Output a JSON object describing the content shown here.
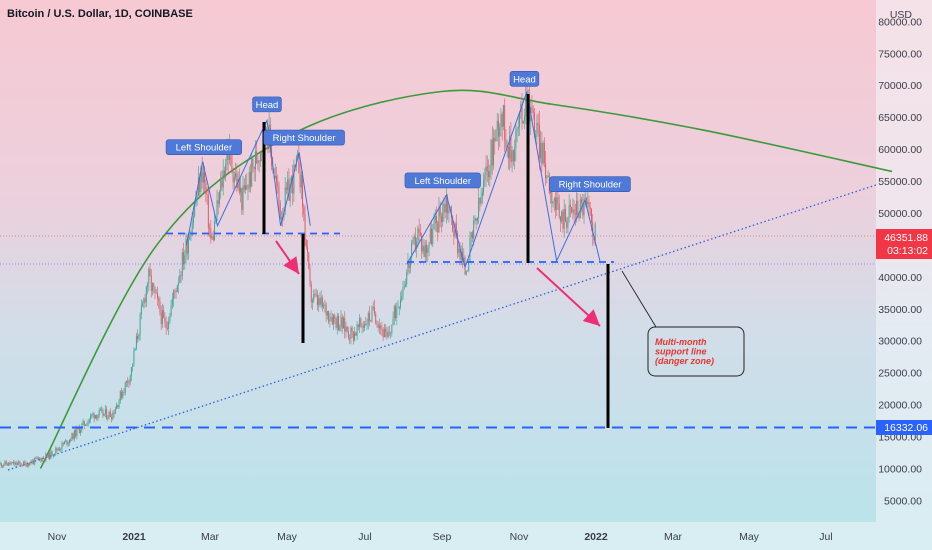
{
  "header": {
    "title": "Bitcoin / U.S. Dollar, 1D, COINBASE"
  },
  "chart_data": {
    "type": "line",
    "currency": "USD",
    "y_ticks": [
      5000,
      10000,
      15000,
      20000,
      25000,
      30000,
      35000,
      40000,
      45000,
      50000,
      55000,
      60000,
      65000,
      70000,
      75000,
      80000
    ],
    "ylim": [
      0,
      85000
    ],
    "x_ticks": [
      "Nov",
      "2021",
      "Mar",
      "May",
      "Jul",
      "Sep",
      "Nov",
      "2022",
      "Mar",
      "May",
      "Jul"
    ],
    "x_ticks_bold": [
      "2021",
      "2022"
    ],
    "price_label": {
      "price": "46351.88",
      "countdown": "03:13:02",
      "color": "#f23645"
    },
    "support_label": {
      "price": "16332.06",
      "color": "#2962ff"
    },
    "series": [
      {
        "values": [
          [
            "2020-10-01",
            10700
          ],
          [
            "2020-10-20",
            12000
          ],
          [
            "2020-11-05",
            14500
          ],
          [
            "2020-11-25",
            18500
          ],
          [
            "2020-12-10",
            18500
          ],
          [
            "2020-12-25",
            25000
          ],
          [
            "2021-01-08",
            40000
          ],
          [
            "2021-01-22",
            32000
          ],
          [
            "2021-02-08",
            45000
          ],
          [
            "2021-02-21",
            57000
          ],
          [
            "2021-02-28",
            45000
          ],
          [
            "2021-03-13",
            60000
          ],
          [
            "2021-03-25",
            52000
          ],
          [
            "2021-04-14",
            63500
          ],
          [
            "2021-04-25",
            50000
          ],
          [
            "2021-05-10",
            58000
          ],
          [
            "2021-05-19",
            37000
          ],
          [
            "2021-06-22",
            31000
          ],
          [
            "2021-07-10",
            34500
          ],
          [
            "2021-07-20",
            30000
          ],
          [
            "2021-08-14",
            47000
          ],
          [
            "2021-08-19",
            44000
          ],
          [
            "2021-09-06",
            52000
          ],
          [
            "2021-09-21",
            41000
          ],
          [
            "2021-10-20",
            66000
          ],
          [
            "2021-10-28",
            59000
          ],
          [
            "2021-11-10",
            68500
          ],
          [
            "2021-11-28",
            55000
          ],
          [
            "2021-12-06",
            49000
          ],
          [
            "2021-12-27",
            51500
          ],
          [
            "2022-01-05",
            46351.88
          ]
        ]
      }
    ],
    "patterns": [
      {
        "points": [
          [
            "2021-02-08",
            45000
          ],
          [
            "2021-02-21",
            58000
          ],
          [
            "2021-03-05",
            48000
          ],
          [
            "2021-04-14",
            64500
          ],
          [
            "2021-04-25",
            48000
          ],
          [
            "2021-05-10",
            59500
          ],
          [
            "2021-05-19",
            48000
          ]
        ]
      },
      {
        "points": [
          [
            "2021-08-05",
            42000
          ],
          [
            "2021-09-06",
            52800
          ],
          [
            "2021-09-21",
            41500
          ],
          [
            "2021-11-10",
            69000
          ],
          [
            "2021-12-04",
            42500
          ],
          [
            "2021-12-27",
            52000
          ],
          [
            "2022-01-08",
            42500
          ]
        ]
      }
    ],
    "annotations": [
      {
        "text": "Left Shoulder",
        "date": "2021-02-22",
        "price": 60300
      },
      {
        "text": "Head",
        "date": "2021-04-14",
        "price": 67000
      },
      {
        "text": "Right Shoulder",
        "date": "2021-05-14",
        "price": 61800
      },
      {
        "text": "Left Shoulder",
        "date": "2021-09-03",
        "price": 55100
      },
      {
        "text": "Head",
        "date": "2021-11-08",
        "price": 71000
      },
      {
        "text": "Right Shoulder",
        "date": "2021-12-31",
        "price": 54500
      }
    ],
    "callout": {
      "lines": [
        "Multi-month",
        "support line",
        "(danger zone)"
      ]
    },
    "arc": [
      [
        "2020-10-13",
        10000
      ],
      [
        "2021-01-15",
        45000
      ],
      [
        "2021-05-01",
        62000
      ],
      [
        "2021-09-01",
        69000
      ],
      [
        "2021-12-01",
        67000
      ],
      [
        "2022-04-01",
        63000
      ],
      [
        "2022-09-01",
        56500
      ]
    ]
  }
}
